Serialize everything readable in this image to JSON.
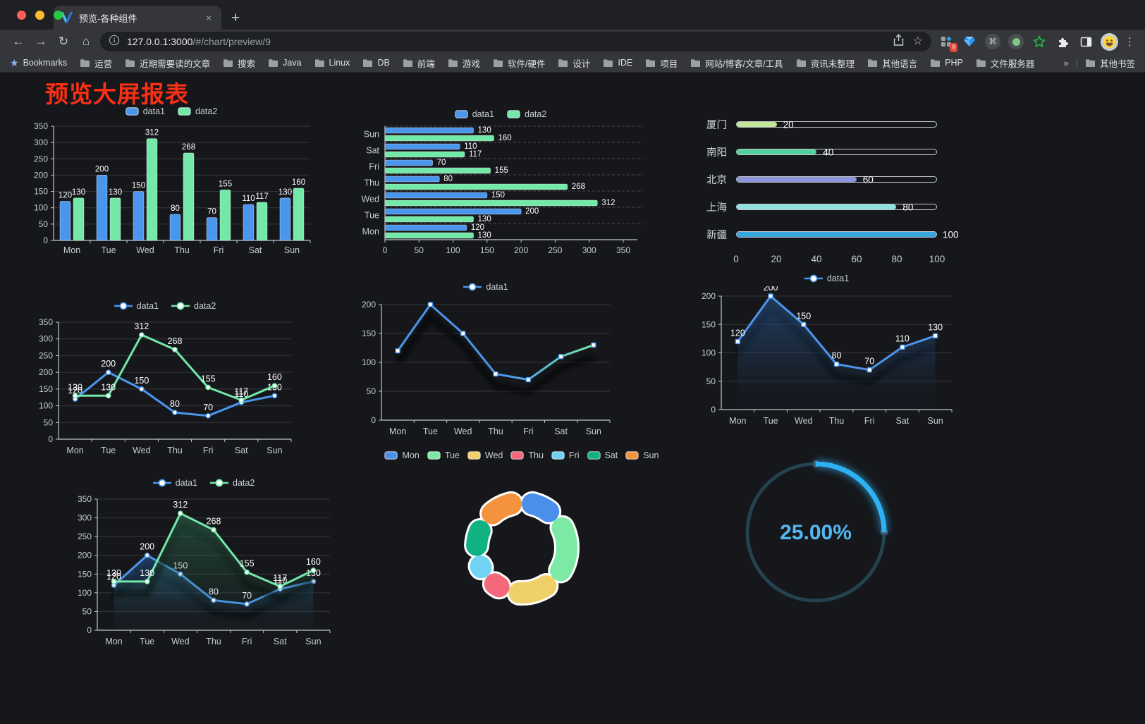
{
  "browser": {
    "traffic": {
      "close": "#ff5f57",
      "minimize": "#febc2e",
      "zoom": "#28c840"
    },
    "tab": {
      "title": "预览-各种组件"
    },
    "url": {
      "host": "127.0.0.1:3000",
      "path": "/#/chart/preview/9"
    },
    "ext_badge": "9",
    "icons": {
      "back": "←",
      "forward": "→",
      "reload": "↻",
      "home": "⌂",
      "bookmark_star": "☆",
      "menu": "⋮",
      "command": "⌘",
      "close_tab": "×",
      "new_tab": "+",
      "overflow": "»",
      "divider": "|",
      "bookmarks_star": "★"
    },
    "bookmarks": {
      "label": "Bookmarks",
      "items": [
        "运营",
        "近期需要读的文章",
        "搜索",
        "Java",
        "Linux",
        "DB",
        "前端",
        "游戏",
        "软件/硬件",
        "设计",
        "IDE",
        "项目",
        "网站/博客/文章/工具",
        "资讯未整理",
        "其他语言",
        "PHP",
        "文件服务器"
      ],
      "other": "其他书签"
    }
  },
  "page": {
    "title": "预览大屏报表",
    "title_color": "#f93014",
    "bg": "#15171b"
  },
  "chart_data": [
    {
      "id": "bar1",
      "type": "bar",
      "categories": [
        "Mon",
        "Tue",
        "Wed",
        "Thu",
        "Fri",
        "Sat",
        "Sun"
      ],
      "series": [
        {
          "name": "data1",
          "color": "#4a96ec",
          "values": [
            120,
            200,
            150,
            80,
            70,
            110,
            130
          ]
        },
        {
          "name": "data2",
          "color": "#73e8a8",
          "values": [
            130,
            130,
            312,
            268,
            155,
            117,
            160
          ]
        }
      ],
      "ylim": [
        0,
        350
      ],
      "ytick": 50,
      "legend": "rect",
      "grid": true
    },
    {
      "id": "hbar1",
      "type": "hbar",
      "categories": [
        "Mon",
        "Tue",
        "Wed",
        "Thu",
        "Fri",
        "Sat",
        "Sun"
      ],
      "series": [
        {
          "name": "data1",
          "color": "#4a96ec",
          "values": [
            120,
            200,
            150,
            80,
            70,
            110,
            130
          ]
        },
        {
          "name": "data2",
          "color": "#73e8a8",
          "values": [
            130,
            130,
            312,
            268,
            155,
            117,
            160
          ]
        }
      ],
      "xlim": [
        0,
        350
      ],
      "xtick": 50,
      "legend": "rect"
    },
    {
      "id": "cities",
      "type": "progress",
      "max": 100,
      "axis": [
        0,
        20,
        40,
        60,
        80,
        100
      ],
      "items": [
        {
          "label": "厦门",
          "value": 20,
          "color": "#c3e79a"
        },
        {
          "label": "南阳",
          "value": 40,
          "color": "#52d2a0"
        },
        {
          "label": "北京",
          "value": 60,
          "color": "#8d94dc"
        },
        {
          "label": "上海",
          "value": 80,
          "color": "#8fe1df"
        },
        {
          "label": "新疆",
          "value": 100,
          "color": "#38a7e0"
        }
      ]
    },
    {
      "id": "line2",
      "type": "line",
      "categories": [
        "Mon",
        "Tue",
        "Wed",
        "Thu",
        "Fri",
        "Sat",
        "Sun"
      ],
      "series": [
        {
          "name": "data1",
          "color": "#4a96ec",
          "values": [
            120,
            200,
            150,
            80,
            70,
            110,
            130
          ],
          "labels": true,
          "marker": "circle"
        },
        {
          "name": "data2",
          "color": "#73e8a8",
          "values": [
            130,
            130,
            312,
            268,
            155,
            117,
            160
          ],
          "labels": true,
          "marker": "circle"
        }
      ],
      "ylim": [
        0,
        350
      ],
      "ytick": 50,
      "legend": "line"
    },
    {
      "id": "line1g",
      "type": "line",
      "categories": [
        "Mon",
        "Tue",
        "Wed",
        "Thu",
        "Fri",
        "Sat",
        "Sun"
      ],
      "series": [
        {
          "name": "data1",
          "color": [
            "#4a96ec",
            "#73e8a8"
          ],
          "values": [
            120,
            200,
            150,
            80,
            70,
            110,
            130
          ],
          "labels": false,
          "marker": "square"
        }
      ],
      "ylim": [
        0,
        200
      ],
      "ytick": 50,
      "legend": "line",
      "shadow": true
    },
    {
      "id": "area1",
      "type": "line",
      "categories": [
        "Mon",
        "Tue",
        "Wed",
        "Thu",
        "Fri",
        "Sat",
        "Sun"
      ],
      "series": [
        {
          "name": "data1",
          "color": "#4a96ec",
          "values": [
            120,
            200,
            150,
            80,
            70,
            110,
            130
          ],
          "labels": true,
          "marker": "square",
          "area": "#2a5a96"
        }
      ],
      "ylim": [
        0,
        200
      ],
      "ytick": 50,
      "legend": "line",
      "shadow": true
    },
    {
      "id": "area2",
      "type": "line",
      "categories": [
        "Mon",
        "Tue",
        "Wed",
        "Thu",
        "Fri",
        "Sat",
        "Sun"
      ],
      "series": [
        {
          "name": "data1",
          "color": "#4a96ec",
          "values": [
            120,
            200,
            150,
            80,
            70,
            110,
            130
          ],
          "labels": true,
          "marker": "circle",
          "area": "#2a5a96"
        },
        {
          "name": "data2",
          "color": "#73e8a8",
          "values": [
            130,
            130,
            312,
            268,
            155,
            117,
            160
          ],
          "labels": true,
          "marker": "circle",
          "area": "#2f6e52"
        }
      ],
      "ylim": [
        0,
        350
      ],
      "ytick": 50,
      "legend": "line",
      "shadow": true
    },
    {
      "id": "pie1",
      "type": "pie",
      "labels": [
        "Mon",
        "Tue",
        "Wed",
        "Thu",
        "Fri",
        "Sat",
        "Sun"
      ],
      "values": [
        120,
        200,
        150,
        80,
        70,
        110,
        130
      ],
      "colors": [
        "#4a90ea",
        "#7ceaa5",
        "#f0d068",
        "#f4687a",
        "#70d2f4",
        "#10b183",
        "#f5923e"
      ],
      "legend": "rect"
    },
    {
      "id": "gauge1",
      "type": "gauge",
      "text": "25.00%",
      "percent": 25,
      "color": "#2eb1f2",
      "track": "#24434f",
      "text_color": "#53b7ef"
    }
  ]
}
